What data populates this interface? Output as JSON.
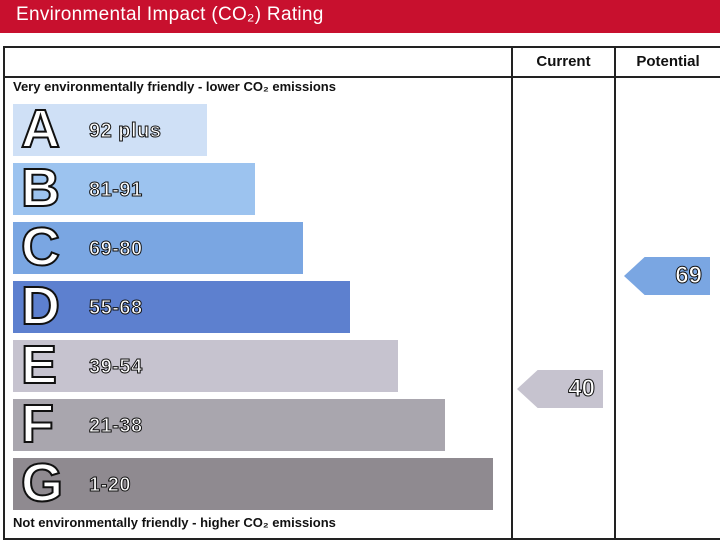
{
  "header": {
    "title": "Environmental Impact (CO₂) Rating"
  },
  "columns": {
    "current": "Current",
    "potential": "Potential"
  },
  "captions": {
    "top": "Very environmentally friendly - lower CO₂ emissions",
    "bottom": "Not environmentally friendly - higher CO₂ emissions"
  },
  "bands": [
    {
      "letter": "A",
      "range": "92 plus",
      "color": "#cfe0f6"
    },
    {
      "letter": "B",
      "range": "81-91",
      "color": "#9cc3ef"
    },
    {
      "letter": "C",
      "range": "69-80",
      "color": "#7aa6e2"
    },
    {
      "letter": "D",
      "range": "55-68",
      "color": "#5d80cf"
    },
    {
      "letter": "E",
      "range": "39-54",
      "color": "#c6c3cf"
    },
    {
      "letter": "F",
      "range": "21-38",
      "color": "#a9a6ae"
    },
    {
      "letter": "G",
      "range": "1-20",
      "color": "#8f8a90"
    }
  ],
  "ratings": {
    "current": {
      "value": "40",
      "color": "#c6c3cf"
    },
    "potential": {
      "value": "69",
      "color": "#7aa6e2"
    }
  }
}
